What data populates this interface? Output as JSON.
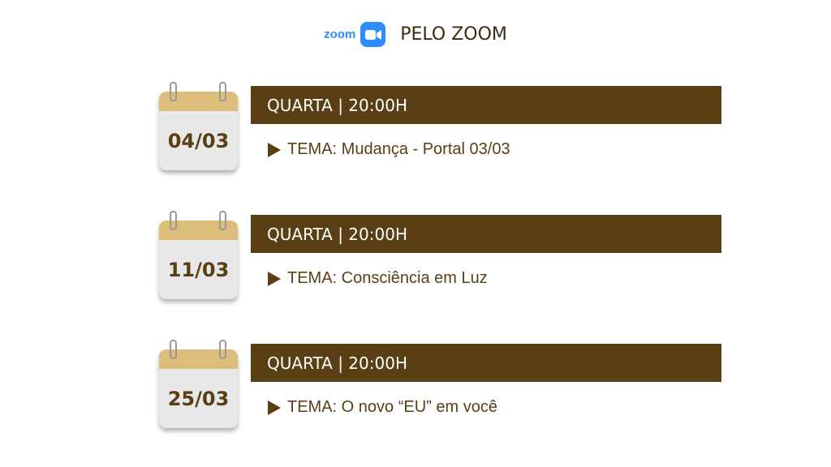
{
  "header": {
    "logo_text": "zoom",
    "title": "PELO ZOOM",
    "brand_color": "#2d8cff"
  },
  "colors": {
    "primary": "#5a3f15",
    "calendar_band": "#dcbd7a"
  },
  "events": [
    {
      "date": "04/03",
      "schedule": "QUARTA | 20:00H",
      "theme": "TEMA: Mudança - Portal 03/03"
    },
    {
      "date": "11/03",
      "schedule": "QUARTA | 20:00H",
      "theme": "TEMA: Consciência em Luz"
    },
    {
      "date": "25/03",
      "schedule": "QUARTA | 20:00H",
      "theme": "TEMA: O novo “EU” em você"
    }
  ]
}
